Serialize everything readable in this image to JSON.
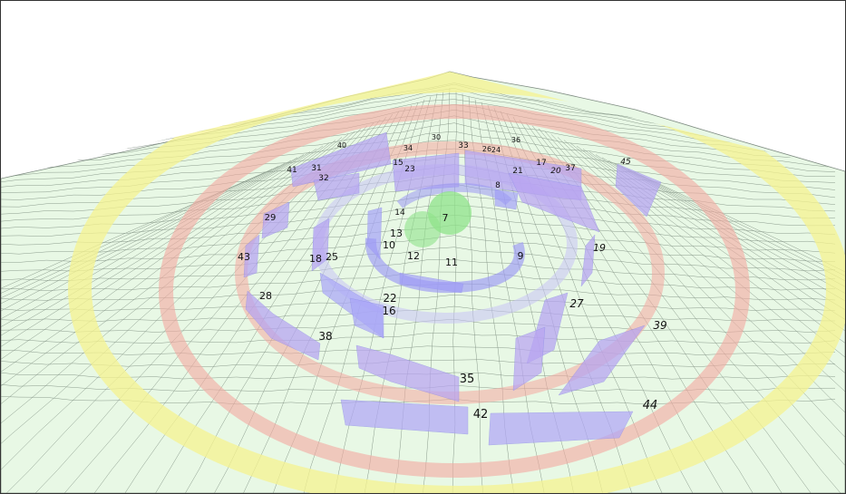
{
  "scene": {
    "labels": [
      "7",
      "8",
      "9",
      "10",
      "11",
      "12",
      "13",
      "14",
      "15",
      "16",
      "17",
      "18",
      "19",
      "20",
      "21",
      "22",
      "23",
      "24",
      "25",
      "26",
      "27",
      "28",
      "29",
      "30",
      "31",
      "32",
      "33",
      "34",
      "35",
      "36",
      "37",
      "38",
      "39",
      "40",
      "41",
      "42",
      "43",
      "44",
      "45"
    ]
  },
  "colors": {
    "background": "#ffffff",
    "terrain_fill": "#e6f7e3",
    "terrain_mesh": "#7f8f82",
    "ring_yellow": "#f6f59a",
    "ring_red": "#f3b3ab",
    "panel_blue": "#a8a7f8",
    "panel_purple": "#b9a4f2",
    "center_green": "#8fe38a"
  }
}
